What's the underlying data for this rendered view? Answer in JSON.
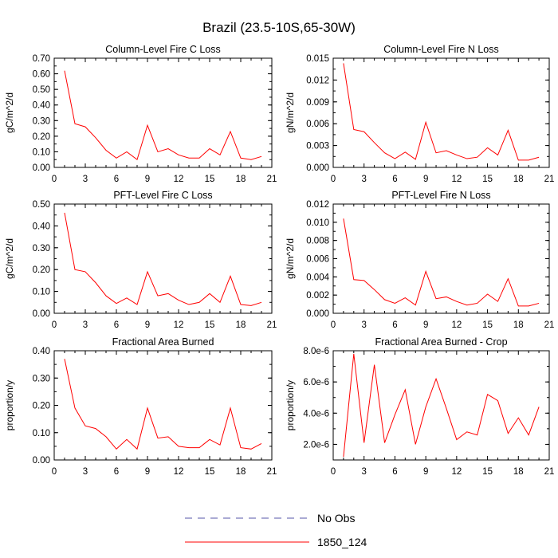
{
  "figure": {
    "title": "Brazil (23.5-10S,65-30W)"
  },
  "colors": {
    "series": "#ff0000",
    "obs": "#5555aa",
    "axis": "#000000"
  },
  "legend": {
    "placement": "bottom-center",
    "entries": [
      {
        "label": "No Obs",
        "style": "dashed",
        "color": "#5555aa"
      },
      {
        "label": "1850_124",
        "style": "solid",
        "color": "#ff0000"
      }
    ]
  },
  "chart_data": [
    {
      "type": "line",
      "title": "Column-Level Fire C Loss",
      "ylabel": "gC/m^2/d",
      "xlim": [
        0,
        21
      ],
      "ylim": [
        0,
        0.7
      ],
      "xticks": [
        "0",
        "3",
        "6",
        "9",
        "12",
        "15",
        "18",
        "21"
      ],
      "yticks": [
        "0.00",
        "0.10",
        "0.20",
        "0.30",
        "0.40",
        "0.50",
        "0.60",
        "0.70"
      ],
      "series": [
        {
          "name": "1850_124",
          "x": [
            1,
            2,
            3,
            4,
            5,
            6,
            7,
            8,
            9,
            10,
            11,
            12,
            13,
            14,
            15,
            16,
            17,
            18,
            19,
            20
          ],
          "values": [
            0.62,
            0.28,
            0.26,
            0.19,
            0.11,
            0.06,
            0.1,
            0.05,
            0.27,
            0.1,
            0.12,
            0.08,
            0.06,
            0.06,
            0.12,
            0.08,
            0.23,
            0.06,
            0.05,
            0.07
          ]
        }
      ]
    },
    {
      "type": "line",
      "title": "Column-Level Fire N Loss",
      "ylabel": "gN/m^2/d",
      "xlim": [
        0,
        21
      ],
      "ylim": [
        0,
        0.015
      ],
      "xticks": [
        "0",
        "3",
        "6",
        "9",
        "12",
        "15",
        "18",
        "21"
      ],
      "yticks": [
        "0.000",
        "0.003",
        "0.006",
        "0.009",
        "0.012",
        "0.015"
      ],
      "series": [
        {
          "name": "1850_124",
          "x": [
            1,
            2,
            3,
            4,
            5,
            6,
            7,
            8,
            9,
            10,
            11,
            12,
            13,
            14,
            15,
            16,
            17,
            18,
            19,
            20
          ],
          "values": [
            0.0143,
            0.0052,
            0.0049,
            0.0034,
            0.002,
            0.0012,
            0.0021,
            0.0011,
            0.0062,
            0.002,
            0.0023,
            0.0017,
            0.0012,
            0.0014,
            0.0027,
            0.0017,
            0.0051,
            0.001,
            0.001,
            0.0014
          ]
        }
      ]
    },
    {
      "type": "line",
      "title": "PFT-Level Fire C Loss",
      "ylabel": "gC/m^2/d",
      "xlim": [
        0,
        21
      ],
      "ylim": [
        0,
        0.5
      ],
      "xticks": [
        "0",
        "3",
        "6",
        "9",
        "12",
        "15",
        "18",
        "21"
      ],
      "yticks": [
        "0.00",
        "0.10",
        "0.20",
        "0.30",
        "0.40",
        "0.50"
      ],
      "series": [
        {
          "name": "1850_124",
          "x": [
            1,
            2,
            3,
            4,
            5,
            6,
            7,
            8,
            9,
            10,
            11,
            12,
            13,
            14,
            15,
            16,
            17,
            18,
            19,
            20
          ],
          "values": [
            0.46,
            0.2,
            0.19,
            0.14,
            0.08,
            0.045,
            0.07,
            0.04,
            0.19,
            0.08,
            0.09,
            0.06,
            0.04,
            0.05,
            0.09,
            0.05,
            0.17,
            0.04,
            0.035,
            0.05
          ]
        }
      ]
    },
    {
      "type": "line",
      "title": "PFT-Level Fire N Loss",
      "ylabel": "gN/m^2/d",
      "xlim": [
        0,
        21
      ],
      "ylim": [
        0,
        0.012
      ],
      "xticks": [
        "0",
        "3",
        "6",
        "9",
        "12",
        "15",
        "18",
        "21"
      ],
      "yticks": [
        "0.000",
        "0.002",
        "0.004",
        "0.006",
        "0.008",
        "0.010",
        "0.012"
      ],
      "series": [
        {
          "name": "1850_124",
          "x": [
            1,
            2,
            3,
            4,
            5,
            6,
            7,
            8,
            9,
            10,
            11,
            12,
            13,
            14,
            15,
            16,
            17,
            18,
            19,
            20
          ],
          "values": [
            0.0104,
            0.0037,
            0.0036,
            0.0026,
            0.0015,
            0.0011,
            0.0017,
            0.0009,
            0.0046,
            0.0016,
            0.0018,
            0.0013,
            0.0009,
            0.0011,
            0.0021,
            0.0013,
            0.0038,
            0.0008,
            0.0008,
            0.0011
          ]
        }
      ]
    },
    {
      "type": "line",
      "title": "Fractional Area Burned",
      "ylabel": "proportion/y",
      "xlim": [
        0,
        21
      ],
      "ylim": [
        0,
        0.4
      ],
      "xticks": [
        "0",
        "3",
        "6",
        "9",
        "12",
        "15",
        "18",
        "21"
      ],
      "yticks": [
        "0.00",
        "0.10",
        "0.20",
        "0.30",
        "0.40"
      ],
      "series": [
        {
          "name": "1850_124",
          "x": [
            1,
            2,
            3,
            4,
            5,
            6,
            7,
            8,
            9,
            10,
            11,
            12,
            13,
            14,
            15,
            16,
            17,
            18,
            19,
            20
          ],
          "values": [
            0.37,
            0.19,
            0.125,
            0.115,
            0.085,
            0.04,
            0.075,
            0.04,
            0.19,
            0.08,
            0.085,
            0.05,
            0.045,
            0.045,
            0.075,
            0.055,
            0.19,
            0.045,
            0.04,
            0.06
          ]
        }
      ]
    },
    {
      "type": "line",
      "title": "Fractional Area Burned - Crop",
      "ylabel": "proportion/y",
      "xlim": [
        0,
        21
      ],
      "ylim": [
        1e-06,
        8e-06
      ],
      "xticks": [
        "0",
        "3",
        "6",
        "9",
        "12",
        "15",
        "18",
        "21"
      ],
      "ytick_values": [
        2e-06,
        4e-06,
        6e-06,
        8e-06
      ],
      "yticks": [
        "2.0e-6",
        "4.0e-6",
        "6.0e-6",
        "8.0e-6"
      ],
      "series": [
        {
          "name": "1850_124",
          "x": [
            1,
            2,
            3,
            4,
            5,
            6,
            7,
            8,
            9,
            10,
            11,
            12,
            13,
            14,
            15,
            16,
            17,
            18,
            19,
            20
          ],
          "values": [
            1.2e-06,
            7.8e-06,
            2.1e-06,
            7.1e-06,
            2.1e-06,
            3.9e-06,
            5.5e-06,
            2e-06,
            4.4e-06,
            6.2e-06,
            4.3e-06,
            2.3e-06,
            2.8e-06,
            2.6e-06,
            5.2e-06,
            4.8e-06,
            2.7e-06,
            3.7e-06,
            2.6e-06,
            4.4e-06
          ]
        }
      ]
    }
  ]
}
